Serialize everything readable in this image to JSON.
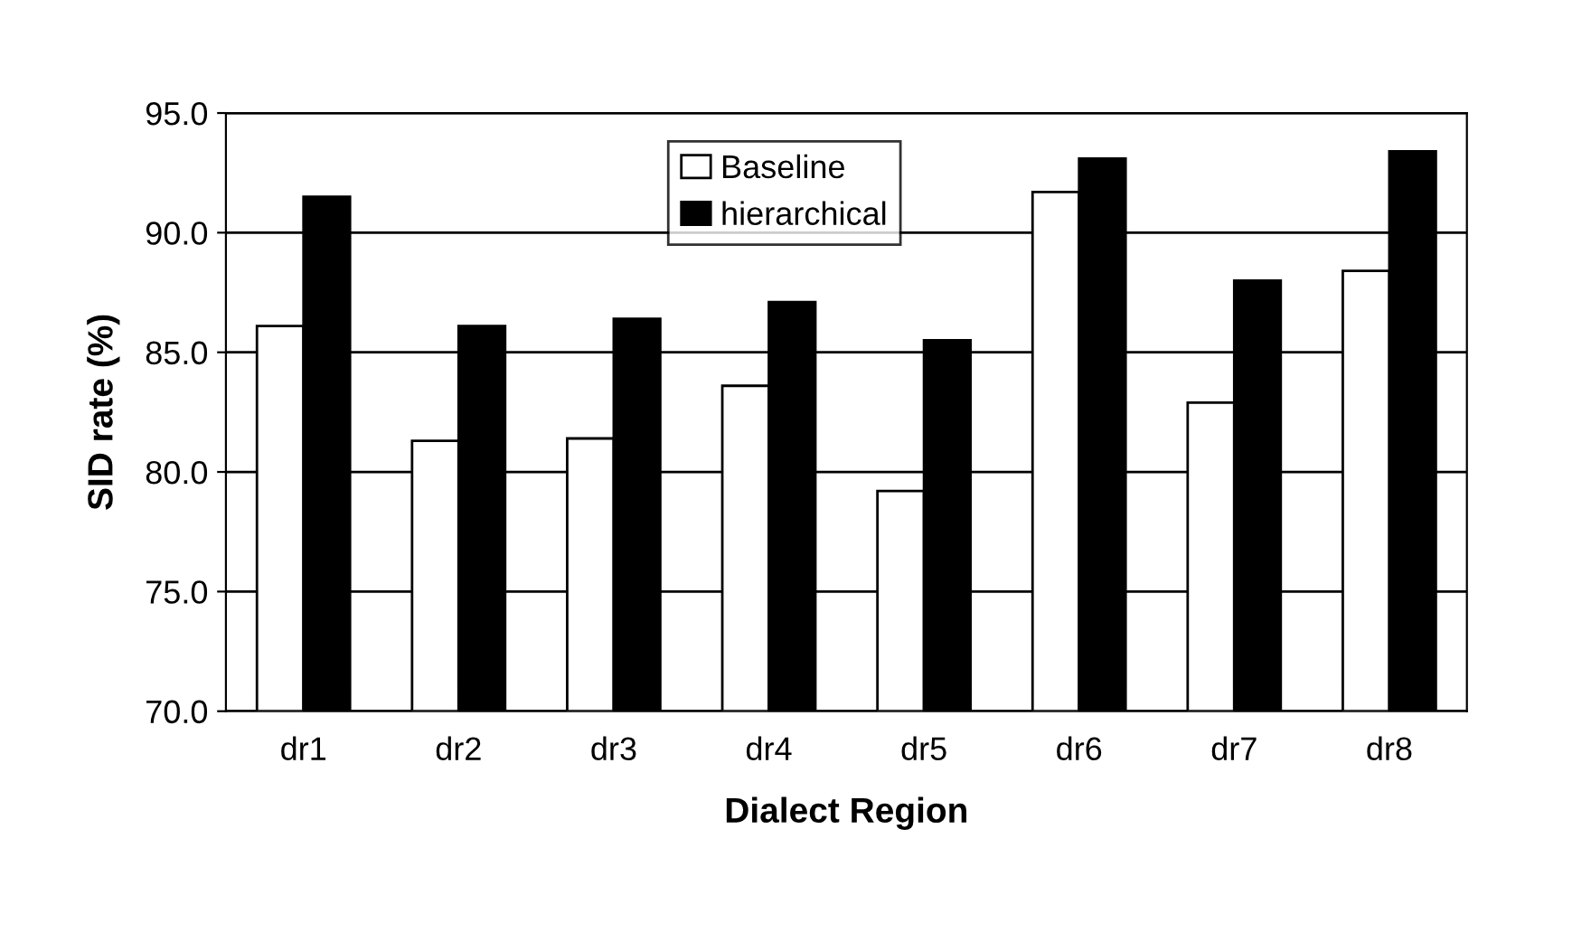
{
  "chart_data": {
    "type": "bar",
    "xlabel": "Dialect Region",
    "ylabel": "SID rate (%)",
    "categories": [
      "dr1",
      "dr2",
      "dr3",
      "dr4",
      "dr5",
      "dr6",
      "dr7",
      "dr8"
    ],
    "series": [
      {
        "name": "Baseline",
        "color": "#ffffff",
        "values": [
          86.1,
          81.3,
          81.4,
          83.6,
          79.2,
          91.7,
          82.9,
          88.4
        ]
      },
      {
        "name": "hierarchical",
        "color": "#000000",
        "values": [
          91.5,
          86.1,
          86.4,
          87.1,
          85.5,
          93.1,
          88.0,
          93.4
        ]
      }
    ],
    "ylim": [
      70,
      95
    ],
    "yticks": [
      {
        "value": 70,
        "label": "70.0"
      },
      {
        "value": 75,
        "label": "75.0"
      },
      {
        "value": 80,
        "label": "80.0"
      },
      {
        "value": 85,
        "label": "85.0"
      },
      {
        "value": 90,
        "label": "90.0"
      },
      {
        "value": 95,
        "label": "95.0"
      }
    ],
    "grid": "y",
    "legend": "top"
  }
}
